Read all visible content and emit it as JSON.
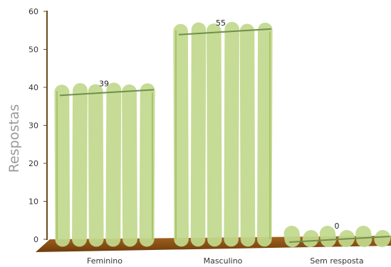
{
  "chart_data": {
    "type": "bar",
    "categories": [
      "Feminino",
      "Masculino",
      "Sem resposta"
    ],
    "values": [
      39,
      55,
      0
    ],
    "ylabel": "Respostas",
    "ylim": [
      0,
      60
    ],
    "yticks": [
      0,
      10,
      20,
      30,
      40,
      50,
      60
    ],
    "data_labels": [
      "39",
      "55",
      "0"
    ],
    "grid": false,
    "colors": {
      "bar": "#c2d98d",
      "bar_edge": "#9fbd5e",
      "trend": "#6f8f4a",
      "floor": "#8a4f14",
      "axis": "#6b4a1a"
    }
  }
}
